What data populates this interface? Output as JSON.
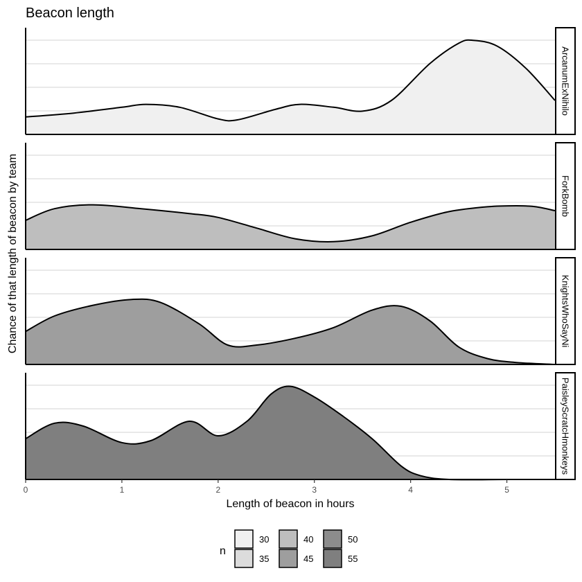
{
  "chart_data": {
    "type": "area",
    "title": "Beacon length",
    "xlabel": "Length of beacon in hours",
    "ylabel": "Chance of that length of beacon by team",
    "xlim": [
      0,
      5.5
    ],
    "x_ticks": [
      "0",
      "1",
      "2",
      "3",
      "4",
      "5"
    ],
    "grid": "horizontal major lines only",
    "facet": "stacked vertically, one panel per team, strip label on the right",
    "series": [
      {
        "name": "ArcanumExNihilo",
        "fill": "#f0f0f0",
        "x": [
          0,
          0.5,
          1.0,
          1.25,
          1.6,
          2.0,
          2.2,
          2.6,
          2.85,
          3.2,
          3.5,
          3.8,
          4.2,
          4.5,
          4.65,
          4.9,
          5.2,
          5.5
        ],
        "y": [
          0.18,
          0.22,
          0.28,
          0.31,
          0.28,
          0.16,
          0.15,
          0.26,
          0.31,
          0.28,
          0.24,
          0.35,
          0.73,
          0.94,
          0.97,
          0.91,
          0.68,
          0.35
        ]
      },
      {
        "name": "ForkBomb",
        "fill": "#bebebe",
        "x": [
          0,
          0.3,
          0.7,
          1.2,
          1.7,
          2.0,
          2.4,
          2.8,
          3.2,
          3.6,
          4.0,
          4.4,
          4.8,
          5.1,
          5.3,
          5.5
        ],
        "y": [
          0.3,
          0.42,
          0.46,
          0.42,
          0.37,
          0.33,
          0.22,
          0.11,
          0.08,
          0.14,
          0.28,
          0.39,
          0.44,
          0.45,
          0.44,
          0.4
        ]
      },
      {
        "name": "KnightsWhoSayNi",
        "fill": "#9e9e9e",
        "x": [
          0,
          0.3,
          0.7,
          1.1,
          1.4,
          1.8,
          2.1,
          2.4,
          2.8,
          3.2,
          3.6,
          3.9,
          4.2,
          4.5,
          4.8,
          5.1,
          5.5
        ],
        "y": [
          0.34,
          0.5,
          0.61,
          0.67,
          0.64,
          0.42,
          0.2,
          0.2,
          0.27,
          0.38,
          0.56,
          0.6,
          0.45,
          0.18,
          0.06,
          0.02,
          0.0
        ]
      },
      {
        "name": "PaisleyScratcHmonkeys",
        "fill": "#7f7f7f",
        "x": [
          0,
          0.3,
          0.6,
          1.0,
          1.3,
          1.7,
          2.0,
          2.3,
          2.55,
          2.75,
          3.0,
          3.3,
          3.6,
          3.9,
          4.1,
          4.4,
          5.0,
          5.5
        ],
        "y": [
          0.42,
          0.58,
          0.55,
          0.38,
          0.4,
          0.6,
          0.45,
          0.6,
          0.88,
          0.96,
          0.85,
          0.65,
          0.42,
          0.14,
          0.04,
          0.0,
          0.0,
          0.0
        ]
      }
    ],
    "legend": {
      "title": "n",
      "placement": "bottom",
      "entries": [
        {
          "label": "30",
          "color": "#f0f0f0"
        },
        {
          "label": "35",
          "color": "#dcdcdc"
        },
        {
          "label": "40",
          "color": "#bebebe"
        },
        {
          "label": "45",
          "color": "#9e9e9e"
        },
        {
          "label": "50",
          "color": "#8c8c8c"
        },
        {
          "label": "55",
          "color": "#7f7f7f"
        }
      ]
    }
  }
}
